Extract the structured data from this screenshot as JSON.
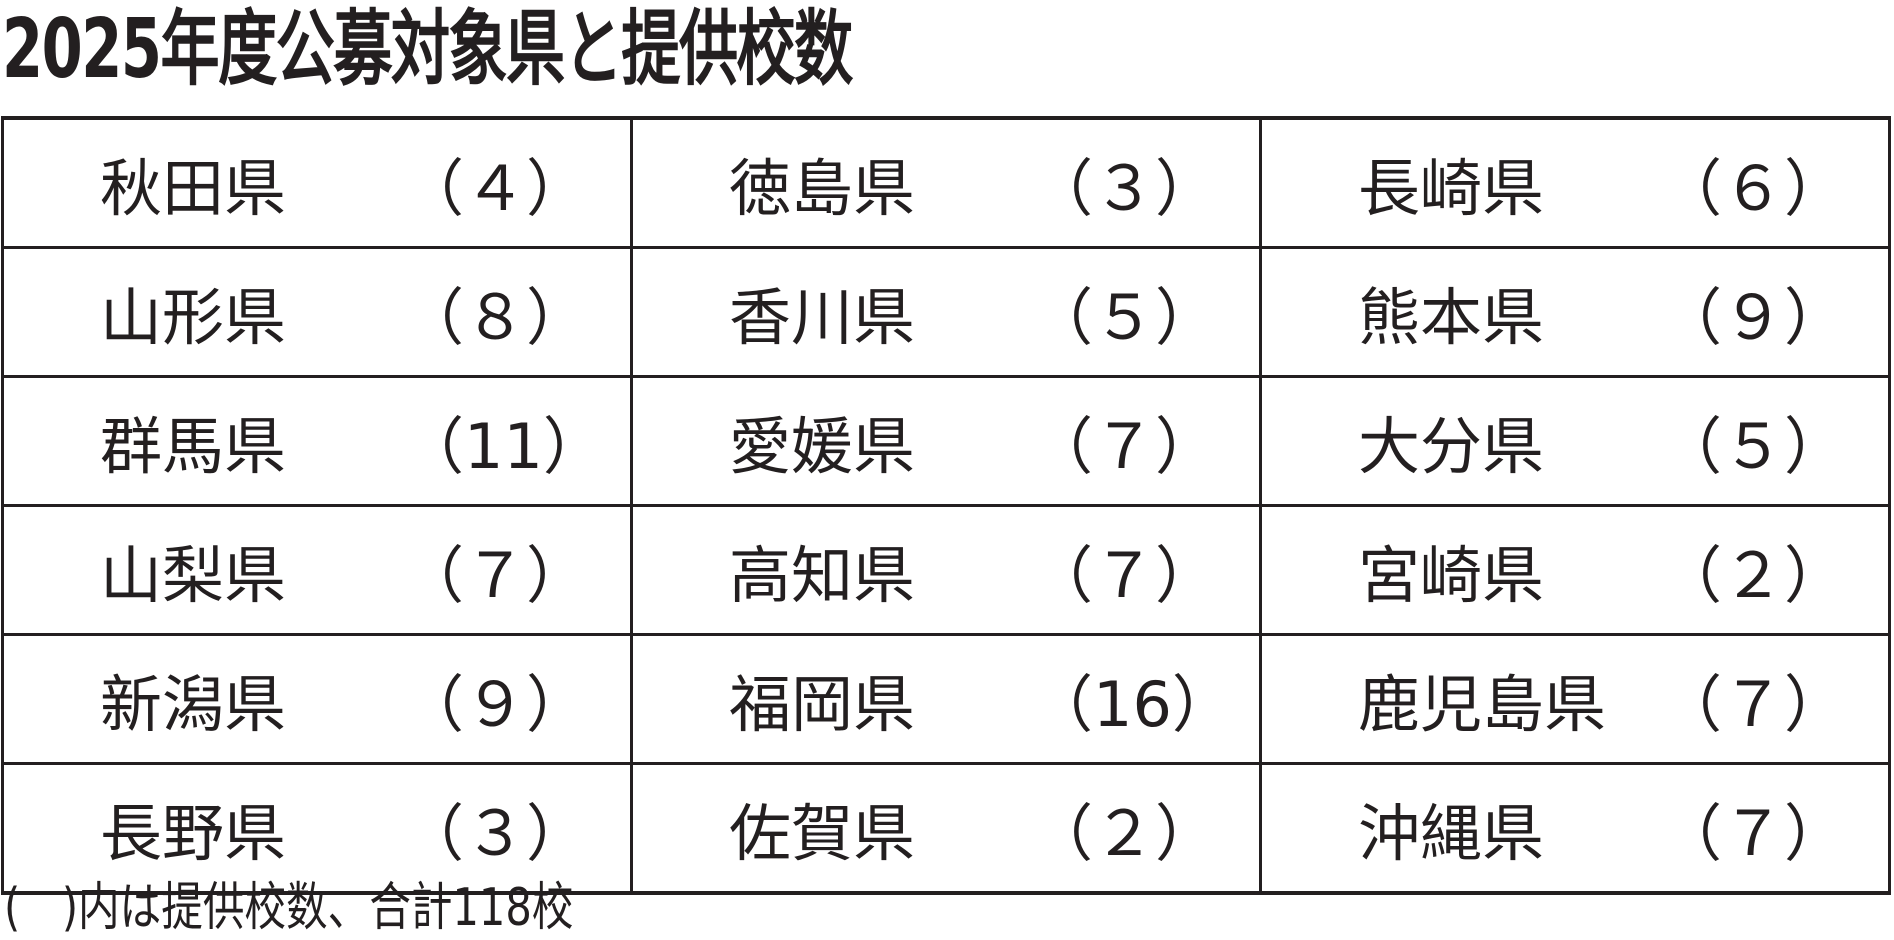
{
  "title": "2025年度公募対象県と提供校数",
  "rows": [
    [
      {
        "name": "秋田県",
        "count": "（４）"
      },
      {
        "name": "徳島県",
        "count": "（３）"
      },
      {
        "name": "長崎県",
        "count": "（６）"
      }
    ],
    [
      {
        "name": "山形県",
        "count": "（８）"
      },
      {
        "name": "香川県",
        "count": "（５）"
      },
      {
        "name": "熊本県",
        "count": "（９）"
      }
    ],
    [
      {
        "name": "群馬県",
        "count": "（11）"
      },
      {
        "name": "愛媛県",
        "count": "（７）"
      },
      {
        "name": "大分県",
        "count": "（５）"
      }
    ],
    [
      {
        "name": "山梨県",
        "count": "（７）"
      },
      {
        "name": "高知県",
        "count": "（７）"
      },
      {
        "name": "宮崎県",
        "count": "（２）"
      }
    ],
    [
      {
        "name": "新潟県",
        "count": "（９）"
      },
      {
        "name": "福岡県",
        "count": "（16）"
      },
      {
        "name": "鹿児島県",
        "count": "（７）"
      }
    ],
    [
      {
        "name": "長野県",
        "count": "（３）"
      },
      {
        "name": "佐賀県",
        "count": "（２）"
      },
      {
        "name": "沖縄県",
        "count": "（７）"
      }
    ]
  ],
  "footer": "(　)内は提供校数、合計118校"
}
